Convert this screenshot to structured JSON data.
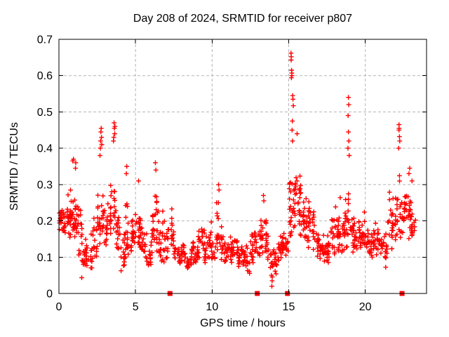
{
  "chart_data": {
    "type": "scatter",
    "title": "Day 208 of 2024, SRMTID for receiver p807",
    "xlabel": "GPS time / hours",
    "ylabel": "SRMTID / TECUs",
    "xlim": [
      0,
      24
    ],
    "ylim": [
      0,
      0.7
    ],
    "xticks": [
      0,
      5,
      10,
      15,
      20
    ],
    "xtick_labels": [
      "0",
      "5",
      "10",
      "15",
      "20"
    ],
    "yticks": [
      0,
      0.1,
      0.2,
      0.3,
      0.4,
      0.5,
      0.6,
      0.7
    ],
    "ytick_labels": [
      "0",
      "0.1",
      "0.2",
      "0.3",
      "0.4",
      "0.5",
      "0.6",
      "0.7"
    ],
    "grid": true,
    "legend": "none",
    "marker": "plus",
    "marker_color": "#ff0000",
    "grid_color": "#b3b3b3",
    "axis_color": "#000000",
    "background_color": "#ffffff",
    "gap_marker_shape": "filled-square",
    "gap_markers_t": [
      7.25,
      12.95,
      14.92,
      22.4
    ],
    "peak_points": [
      [
        0.9,
        0.365
      ],
      [
        0.95,
        0.37
      ],
      [
        1.08,
        0.345
      ],
      [
        1.1,
        0.36
      ],
      [
        2.68,
        0.38
      ],
      [
        2.7,
        0.4
      ],
      [
        2.72,
        0.42
      ],
      [
        2.74,
        0.445
      ],
      [
        2.76,
        0.455
      ],
      [
        2.78,
        0.43
      ],
      [
        2.8,
        0.41
      ],
      [
        3.56,
        0.42
      ],
      [
        3.58,
        0.43
      ],
      [
        3.6,
        0.47
      ],
      [
        3.62,
        0.455
      ],
      [
        3.64,
        0.44
      ],
      [
        3.66,
        0.46
      ],
      [
        4.4,
        0.33
      ],
      [
        4.43,
        0.35
      ],
      [
        5.2,
        0.31
      ],
      [
        6.3,
        0.36
      ],
      [
        6.33,
        0.34
      ],
      [
        10.42,
        0.3
      ],
      [
        10.45,
        0.285
      ],
      [
        13.35,
        0.27
      ],
      [
        13.38,
        0.255
      ],
      [
        13.88,
        0.05
      ],
      [
        13.9,
        0.02
      ],
      [
        13.92,
        0.035
      ],
      [
        15.15,
        0.662
      ],
      [
        15.17,
        0.652
      ],
      [
        15.16,
        0.643
      ],
      [
        15.19,
        0.615
      ],
      [
        15.2,
        0.607
      ],
      [
        15.21,
        0.6
      ],
      [
        15.18,
        0.594
      ],
      [
        15.26,
        0.545
      ],
      [
        15.28,
        0.535
      ],
      [
        15.3,
        0.517
      ],
      [
        15.24,
        0.475
      ],
      [
        15.22,
        0.45
      ],
      [
        15.25,
        0.42
      ],
      [
        15.55,
        0.44
      ],
      [
        18.88,
        0.49
      ],
      [
        18.9,
        0.54
      ],
      [
        18.9,
        0.445
      ],
      [
        18.92,
        0.52
      ],
      [
        18.93,
        0.42
      ],
      [
        18.87,
        0.4
      ],
      [
        18.95,
        0.38
      ],
      [
        22.18,
        0.4
      ],
      [
        22.2,
        0.465
      ],
      [
        22.2,
        0.45
      ],
      [
        22.21,
        0.455
      ],
      [
        22.23,
        0.432
      ],
      [
        22.25,
        0.42
      ],
      [
        22.85,
        0.33
      ],
      [
        22.9,
        0.345
      ],
      [
        23.05,
        0.31
      ]
    ],
    "density_bands": [
      [
        0.0,
        0.25,
        0.17,
        0.27,
        16
      ],
      [
        0.25,
        0.5,
        0.16,
        0.24,
        16
      ],
      [
        0.5,
        0.75,
        0.15,
        0.31,
        16
      ],
      [
        0.75,
        1.0,
        0.16,
        0.33,
        16
      ],
      [
        1.0,
        1.25,
        0.15,
        0.32,
        16
      ],
      [
        1.25,
        1.5,
        0.1,
        0.29,
        14
      ],
      [
        1.5,
        1.75,
        0.04,
        0.22,
        14
      ],
      [
        1.75,
        2.0,
        0.06,
        0.2,
        12
      ],
      [
        2.0,
        2.25,
        0.05,
        0.22,
        12
      ],
      [
        2.25,
        2.5,
        0.08,
        0.28,
        14
      ],
      [
        2.5,
        2.75,
        0.12,
        0.35,
        14
      ],
      [
        2.75,
        3.0,
        0.14,
        0.36,
        14
      ],
      [
        3.0,
        3.25,
        0.12,
        0.3,
        14
      ],
      [
        3.25,
        3.5,
        0.12,
        0.33,
        14
      ],
      [
        3.5,
        3.75,
        0.13,
        0.4,
        14
      ],
      [
        3.75,
        4.0,
        0.12,
        0.3,
        14
      ],
      [
        4.0,
        4.25,
        0.05,
        0.22,
        12
      ],
      [
        4.25,
        4.5,
        0.06,
        0.3,
        12
      ],
      [
        4.5,
        4.75,
        0.1,
        0.25,
        14
      ],
      [
        4.75,
        5.0,
        0.12,
        0.22,
        14
      ],
      [
        5.0,
        5.25,
        0.12,
        0.28,
        14
      ],
      [
        5.25,
        5.5,
        0.1,
        0.26,
        14
      ],
      [
        5.5,
        5.75,
        0.08,
        0.2,
        12
      ],
      [
        5.75,
        6.0,
        0.05,
        0.18,
        12
      ],
      [
        6.0,
        6.25,
        0.1,
        0.28,
        14
      ],
      [
        6.25,
        6.5,
        0.1,
        0.36,
        14
      ],
      [
        6.5,
        6.75,
        0.08,
        0.24,
        12
      ],
      [
        6.75,
        7.0,
        0.08,
        0.28,
        12
      ],
      [
        7.0,
        7.25,
        0.08,
        0.26,
        12
      ],
      [
        7.25,
        7.5,
        0.09,
        0.3,
        12
      ],
      [
        7.5,
        7.75,
        0.08,
        0.2,
        12
      ],
      [
        7.75,
        8.0,
        0.07,
        0.16,
        12
      ],
      [
        8.0,
        8.25,
        0.08,
        0.16,
        12
      ],
      [
        8.25,
        8.5,
        0.06,
        0.15,
        12
      ],
      [
        8.5,
        8.75,
        0.07,
        0.16,
        12
      ],
      [
        8.75,
        9.0,
        0.08,
        0.17,
        12
      ],
      [
        9.0,
        9.25,
        0.08,
        0.22,
        12
      ],
      [
        9.25,
        9.5,
        0.09,
        0.24,
        12
      ],
      [
        9.5,
        9.75,
        0.08,
        0.2,
        12
      ],
      [
        9.75,
        10.0,
        0.08,
        0.27,
        12
      ],
      [
        10.0,
        10.25,
        0.08,
        0.22,
        12
      ],
      [
        10.25,
        10.5,
        0.1,
        0.3,
        14
      ],
      [
        10.5,
        10.75,
        0.08,
        0.24,
        12
      ],
      [
        10.75,
        11.0,
        0.07,
        0.18,
        12
      ],
      [
        11.0,
        11.25,
        0.07,
        0.18,
        12
      ],
      [
        11.25,
        11.5,
        0.08,
        0.2,
        12
      ],
      [
        11.5,
        11.75,
        0.07,
        0.18,
        12
      ],
      [
        11.75,
        12.0,
        0.08,
        0.18,
        12
      ],
      [
        12.0,
        12.25,
        0.06,
        0.18,
        12
      ],
      [
        12.25,
        12.5,
        0.05,
        0.16,
        12
      ],
      [
        12.5,
        12.75,
        0.08,
        0.2,
        12
      ],
      [
        12.75,
        13.0,
        0.1,
        0.22,
        12
      ],
      [
        13.0,
        13.25,
        0.1,
        0.24,
        12
      ],
      [
        13.25,
        13.5,
        0.1,
        0.28,
        14
      ],
      [
        13.5,
        13.75,
        0.08,
        0.22,
        12
      ],
      [
        13.75,
        14.0,
        0.03,
        0.18,
        12
      ],
      [
        14.0,
        14.25,
        0.04,
        0.16,
        12
      ],
      [
        14.25,
        14.5,
        0.08,
        0.2,
        12
      ],
      [
        14.5,
        14.75,
        0.1,
        0.22,
        12
      ],
      [
        14.75,
        15.0,
        0.1,
        0.24,
        12
      ],
      [
        15.0,
        15.25,
        0.14,
        0.4,
        16
      ],
      [
        15.25,
        15.5,
        0.15,
        0.42,
        16
      ],
      [
        15.5,
        15.75,
        0.18,
        0.4,
        16
      ],
      [
        15.75,
        16.0,
        0.15,
        0.38,
        16
      ],
      [
        16.0,
        16.25,
        0.12,
        0.34,
        14
      ],
      [
        16.25,
        16.5,
        0.12,
        0.3,
        14
      ],
      [
        16.5,
        16.75,
        0.1,
        0.25,
        12
      ],
      [
        16.75,
        17.0,
        0.1,
        0.22,
        12
      ],
      [
        17.0,
        17.25,
        0.08,
        0.2,
        12
      ],
      [
        17.25,
        17.5,
        0.08,
        0.18,
        12
      ],
      [
        17.5,
        17.75,
        0.08,
        0.2,
        12
      ],
      [
        17.75,
        18.0,
        0.1,
        0.24,
        12
      ],
      [
        18.0,
        18.25,
        0.1,
        0.3,
        14
      ],
      [
        18.25,
        18.5,
        0.1,
        0.33,
        14
      ],
      [
        18.5,
        18.75,
        0.1,
        0.28,
        14
      ],
      [
        18.75,
        19.0,
        0.12,
        0.38,
        14
      ],
      [
        19.0,
        19.25,
        0.1,
        0.32,
        14
      ],
      [
        19.25,
        19.5,
        0.1,
        0.28,
        14
      ],
      [
        19.5,
        19.75,
        0.12,
        0.26,
        14
      ],
      [
        19.75,
        20.0,
        0.1,
        0.24,
        14
      ],
      [
        20.0,
        20.25,
        0.1,
        0.22,
        12
      ],
      [
        20.25,
        20.5,
        0.09,
        0.2,
        12
      ],
      [
        20.5,
        20.75,
        0.09,
        0.22,
        12
      ],
      [
        20.75,
        21.0,
        0.1,
        0.24,
        12
      ],
      [
        21.0,
        21.25,
        0.1,
        0.2,
        12
      ],
      [
        21.25,
        21.5,
        0.07,
        0.18,
        12
      ],
      [
        21.5,
        21.75,
        0.12,
        0.33,
        14
      ],
      [
        21.75,
        22.0,
        0.14,
        0.3,
        14
      ],
      [
        22.0,
        22.25,
        0.15,
        0.4,
        14
      ],
      [
        22.25,
        22.5,
        0.15,
        0.33,
        14
      ],
      [
        22.5,
        22.75,
        0.2,
        0.33,
        14
      ],
      [
        22.75,
        23.0,
        0.15,
        0.3,
        14
      ],
      [
        23.0,
        23.3,
        0.15,
        0.3,
        14
      ]
    ],
    "seed": 20240728
  }
}
